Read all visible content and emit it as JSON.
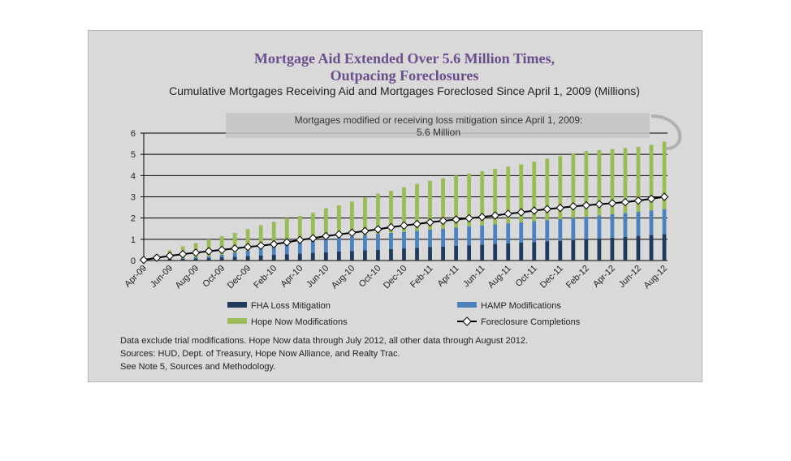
{
  "chart_data": {
    "type": "bar",
    "title_lines": [
      "Mortgage Aid Extended Over 5.6 Million Times,",
      "Outpacing Foreclosures"
    ],
    "subtitle": "Cumulative Mortgages Receiving Aid and Mortgages Foreclosed Since April 1, 2009 (Millions)",
    "annotation_lines": [
      "Mortgages modified or receiving loss mitigation since April 1, 2009:",
      "5.6 Million"
    ],
    "ylim": [
      0,
      6
    ],
    "yticks": [
      "0",
      "1",
      "2",
      "3",
      "4",
      "5",
      "6"
    ],
    "grid": true,
    "stacked": true,
    "legend_position": "bottom",
    "categories": [
      "Apr-09",
      "May-09",
      "Jun-09",
      "Jul-09",
      "Aug-09",
      "Sep-09",
      "Oct-09",
      "Nov-09",
      "Dec-09",
      "Jan-10",
      "Feb-10",
      "Mar-10",
      "Apr-10",
      "May-10",
      "Jun-10",
      "Jul-10",
      "Aug-10",
      "Sep-10",
      "Oct-10",
      "Nov-10",
      "Dec-10",
      "Jan-11",
      "Feb-11",
      "Mar-11",
      "Apr-11",
      "May-11",
      "Jun-11",
      "Jul-11",
      "Aug-11",
      "Sep-11",
      "Oct-11",
      "Nov-11",
      "Dec-11",
      "Jan-12",
      "Feb-12",
      "Mar-12",
      "Apr-12",
      "May-12",
      "Jun-12",
      "Jul-12",
      "Aug-12"
    ],
    "xtick_labels": [
      "Apr-09",
      "Jun-09",
      "Aug-09",
      "Oct-09",
      "Dec-09",
      "Feb-10",
      "Apr-10",
      "Jun-10",
      "Aug-10",
      "Oct-10",
      "Dec-10",
      "Feb-11",
      "Apr-11",
      "Jun-11",
      "Aug-11",
      "Oct-11",
      "Dec-11",
      "Feb-12",
      "Apr-12",
      "Jun-12",
      "Aug-12"
    ],
    "series": [
      {
        "name": "FHA Loss Mitigation",
        "kind": "bar",
        "color": "#1f3a5a",
        "values": [
          0.02,
          0.04,
          0.06,
          0.08,
          0.1,
          0.12,
          0.15,
          0.18,
          0.21,
          0.24,
          0.27,
          0.3,
          0.33,
          0.36,
          0.39,
          0.42,
          0.45,
          0.48,
          0.51,
          0.54,
          0.57,
          0.6,
          0.63,
          0.66,
          0.69,
          0.72,
          0.75,
          0.78,
          0.81,
          0.84,
          0.87,
          0.9,
          0.93,
          0.97,
          1.0,
          1.04,
          1.08,
          1.12,
          1.16,
          1.2,
          1.24
        ]
      },
      {
        "name": "HAMP Modifications",
        "kind": "bar",
        "color": "#4f81bd",
        "values": [
          0.0,
          0.0,
          0.02,
          0.04,
          0.06,
          0.08,
          0.12,
          0.18,
          0.25,
          0.32,
          0.4,
          0.47,
          0.53,
          0.58,
          0.62,
          0.66,
          0.69,
          0.72,
          0.74,
          0.76,
          0.78,
          0.8,
          0.82,
          0.84,
          0.86,
          0.88,
          0.9,
          0.92,
          0.94,
          0.96,
          0.98,
          1.0,
          1.02,
          1.04,
          1.06,
          1.08,
          1.1,
          1.12,
          1.14,
          1.16,
          1.18
        ]
      },
      {
        "name": "Hope Now Modifications",
        "kind": "bar",
        "color": "#9bbb59",
        "values": [
          0.13,
          0.26,
          0.4,
          0.55,
          0.66,
          0.8,
          0.88,
          0.94,
          1.02,
          1.1,
          1.15,
          1.23,
          1.24,
          1.31,
          1.45,
          1.52,
          1.64,
          1.77,
          1.9,
          1.98,
          2.1,
          2.21,
          2.3,
          2.37,
          2.45,
          2.5,
          2.55,
          2.62,
          2.68,
          2.73,
          2.81,
          2.9,
          2.97,
          3.04,
          3.09,
          3.08,
          3.07,
          3.06,
          3.05,
          3.09,
          3.18
        ]
      },
      {
        "name": "Foreclosure Completions",
        "kind": "line",
        "color": "#000000",
        "values": [
          0.03,
          0.13,
          0.22,
          0.3,
          0.37,
          0.44,
          0.5,
          0.57,
          0.64,
          0.7,
          0.77,
          0.86,
          0.97,
          1.05,
          1.15,
          1.23,
          1.31,
          1.39,
          1.47,
          1.57,
          1.65,
          1.72,
          1.8,
          1.87,
          1.93,
          1.99,
          2.05,
          2.12,
          2.2,
          2.27,
          2.35,
          2.42,
          2.48,
          2.55,
          2.6,
          2.65,
          2.7,
          2.75,
          2.82,
          2.91,
          3.0
        ]
      }
    ],
    "notes": [
      "Data exclude trial modifications. Hope Now data through July 2012, all other data through August 2012.",
      "Sources:  HUD, Dept. of Treasury, Hope Now Alliance, and Realty Trac.",
      "See Note 5, Sources and Methodology."
    ]
  }
}
